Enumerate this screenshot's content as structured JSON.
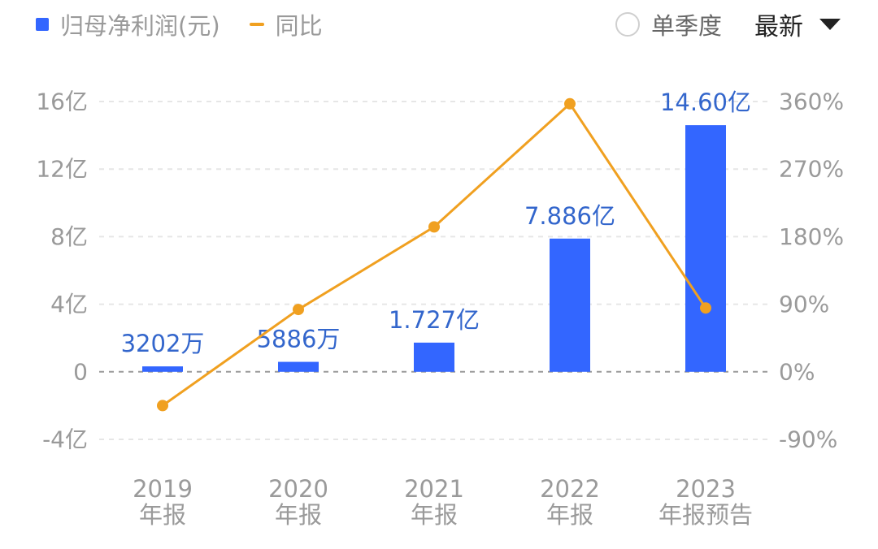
{
  "legend": {
    "bar_label": "归母净利润(元)",
    "line_label": "同比"
  },
  "controls": {
    "single_quarter_label": "单季度",
    "select_value": "最新"
  },
  "chart_data": {
    "type": "bar",
    "categories": [
      {
        "line1": "2019",
        "line2": "年报"
      },
      {
        "line1": "2020",
        "line2": "年报"
      },
      {
        "line1": "2021",
        "line2": "年报"
      },
      {
        "line1": "2022",
        "line2": "年报"
      },
      {
        "line1": "2023",
        "line2": "年报预告"
      }
    ],
    "series": [
      {
        "name": "归母净利润(元)",
        "type": "bar",
        "axis": "left",
        "values": [
          32020000,
          58860000,
          172700000,
          788600000,
          1460000000
        ],
        "labels": [
          "3202万",
          "5886万",
          "1.727亿",
          "7.886亿",
          "14.60亿"
        ],
        "color": "#3366ff"
      },
      {
        "name": "同比",
        "type": "line",
        "axis": "right",
        "values": [
          -45,
          83,
          193,
          357,
          85
        ],
        "color": "#f0a020"
      }
    ],
    "left_axis": {
      "ticks": [
        1600000000,
        1200000000,
        800000000,
        400000000,
        0,
        -400000000
      ],
      "tick_labels": [
        "16亿",
        "12亿",
        "8亿",
        "4亿",
        "0",
        "-4亿"
      ],
      "ylim": [
        -400000000,
        1600000000
      ]
    },
    "right_axis": {
      "ticks": [
        360,
        270,
        180,
        90,
        0,
        -90
      ],
      "tick_labels": [
        "360%",
        "270%",
        "180%",
        "90%",
        "0%",
        "-90%"
      ],
      "ylim": [
        -90,
        360
      ]
    },
    "grid": true,
    "label_color": "#3366cc",
    "axis_text_color": "#9a9a9a"
  }
}
